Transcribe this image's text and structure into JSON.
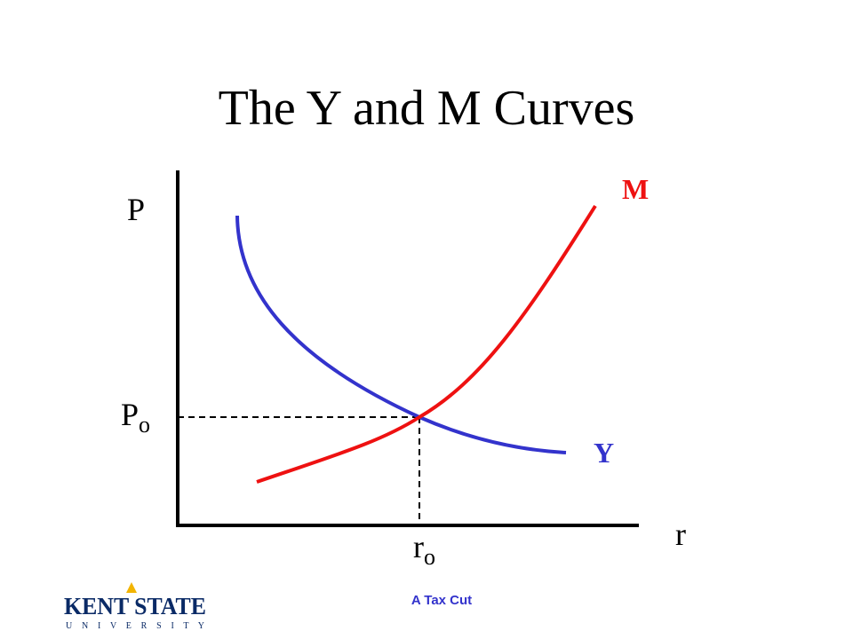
{
  "title": "The Y and M Curves",
  "diagram": {
    "y_axis_label": "P",
    "x_axis_label": "r",
    "curves": [
      {
        "label": "M",
        "color": "#ee1111"
      },
      {
        "label": "Y",
        "color": "#3333cc"
      }
    ],
    "equilibrium": {
      "price": {
        "main": "P",
        "sub": "o"
      },
      "rate": {
        "main": "r",
        "sub": "o"
      }
    }
  },
  "footer": {
    "text": "A Tax Cut",
    "logo": {
      "name": "KENT STATE",
      "subtitle": "U N I V E R S I T Y"
    }
  }
}
